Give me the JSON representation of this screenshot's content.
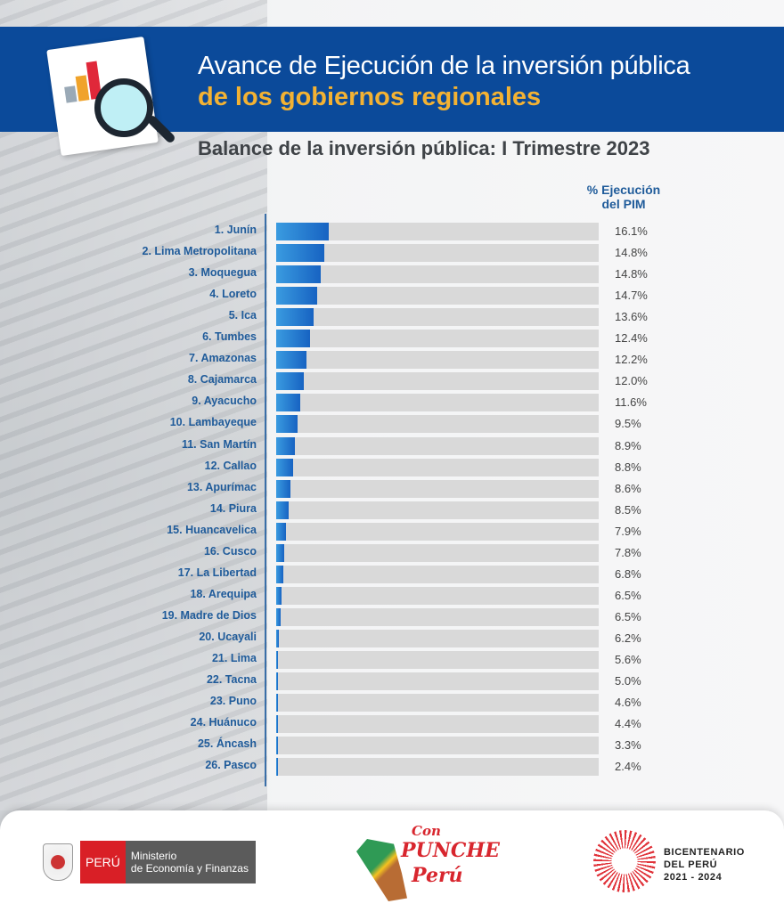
{
  "header": {
    "title_line1": "Avance de Ejecución de la inversión pública",
    "title_line2": "de los gobiernos regionales",
    "subtitle": "Balance de la inversión pública: I Trimestre 2023",
    "brand_color": "#0b4a9a",
    "accent_color": "#f3b233"
  },
  "chart_data": {
    "type": "bar",
    "orientation": "horizontal",
    "title": "Balance de la inversión pública: I Trimestre 2023",
    "value_header": "% Ejecución del PIM",
    "categories": [
      "1. Junín",
      "2. Lima Metropolitana",
      "3. Moquegua",
      "4. Loreto",
      "5. Ica",
      "6. Tumbes",
      "7. Amazonas",
      "8. Cajamarca",
      "9. Ayacucho",
      "10. Lambayeque",
      "11. San Martín",
      "12. Callao",
      "13. Apurímac",
      "14. Piura",
      "15. Huancavelica",
      "16. Cusco",
      "17. La Libertad",
      "18. Arequipa",
      "19. Madre de Dios",
      "20. Ucayali",
      "21. Lima",
      "22. Tacna",
      "23. Puno",
      "24. Huánuco",
      "25. Áncash",
      "26. Pasco"
    ],
    "values": [
      16.1,
      14.8,
      14.8,
      14.7,
      13.6,
      12.4,
      12.2,
      12.0,
      11.6,
      9.5,
      8.9,
      8.8,
      8.6,
      8.5,
      7.9,
      7.8,
      6.8,
      6.5,
      6.5,
      6.2,
      5.6,
      5.0,
      4.6,
      4.4,
      3.3,
      2.4
    ],
    "value_labels": [
      "16.1%",
      "14.8%",
      "14.8%",
      "14.7%",
      "13.6%",
      "12.4%",
      "12.2%",
      "12.0%",
      "11.6%",
      "9.5%",
      "8.9%",
      "8.8%",
      "8.6%",
      "8.5%",
      "7.9%",
      "7.8%",
      "6.8%",
      "6.5%",
      "6.5%",
      "6.2%",
      "5.6%",
      "5.0%",
      "4.6%",
      "4.4%",
      "3.3%",
      "2.4%"
    ],
    "bar_color": "#1f6fcf",
    "track_color": "#d9d9d9",
    "grid": false
  },
  "footer": {
    "mef_country": "PERÚ",
    "mef_line1": "Ministerio",
    "mef_line2": "de Economía y Finanzas",
    "punche_con": "Con",
    "punche_main": "PUNCHE",
    "punche_peru": "Perú",
    "bicentenario_line1": "BICENTENARIO",
    "bicentenario_line2": "DEL PERÚ",
    "bicentenario_line3": "2021 - 2024"
  }
}
